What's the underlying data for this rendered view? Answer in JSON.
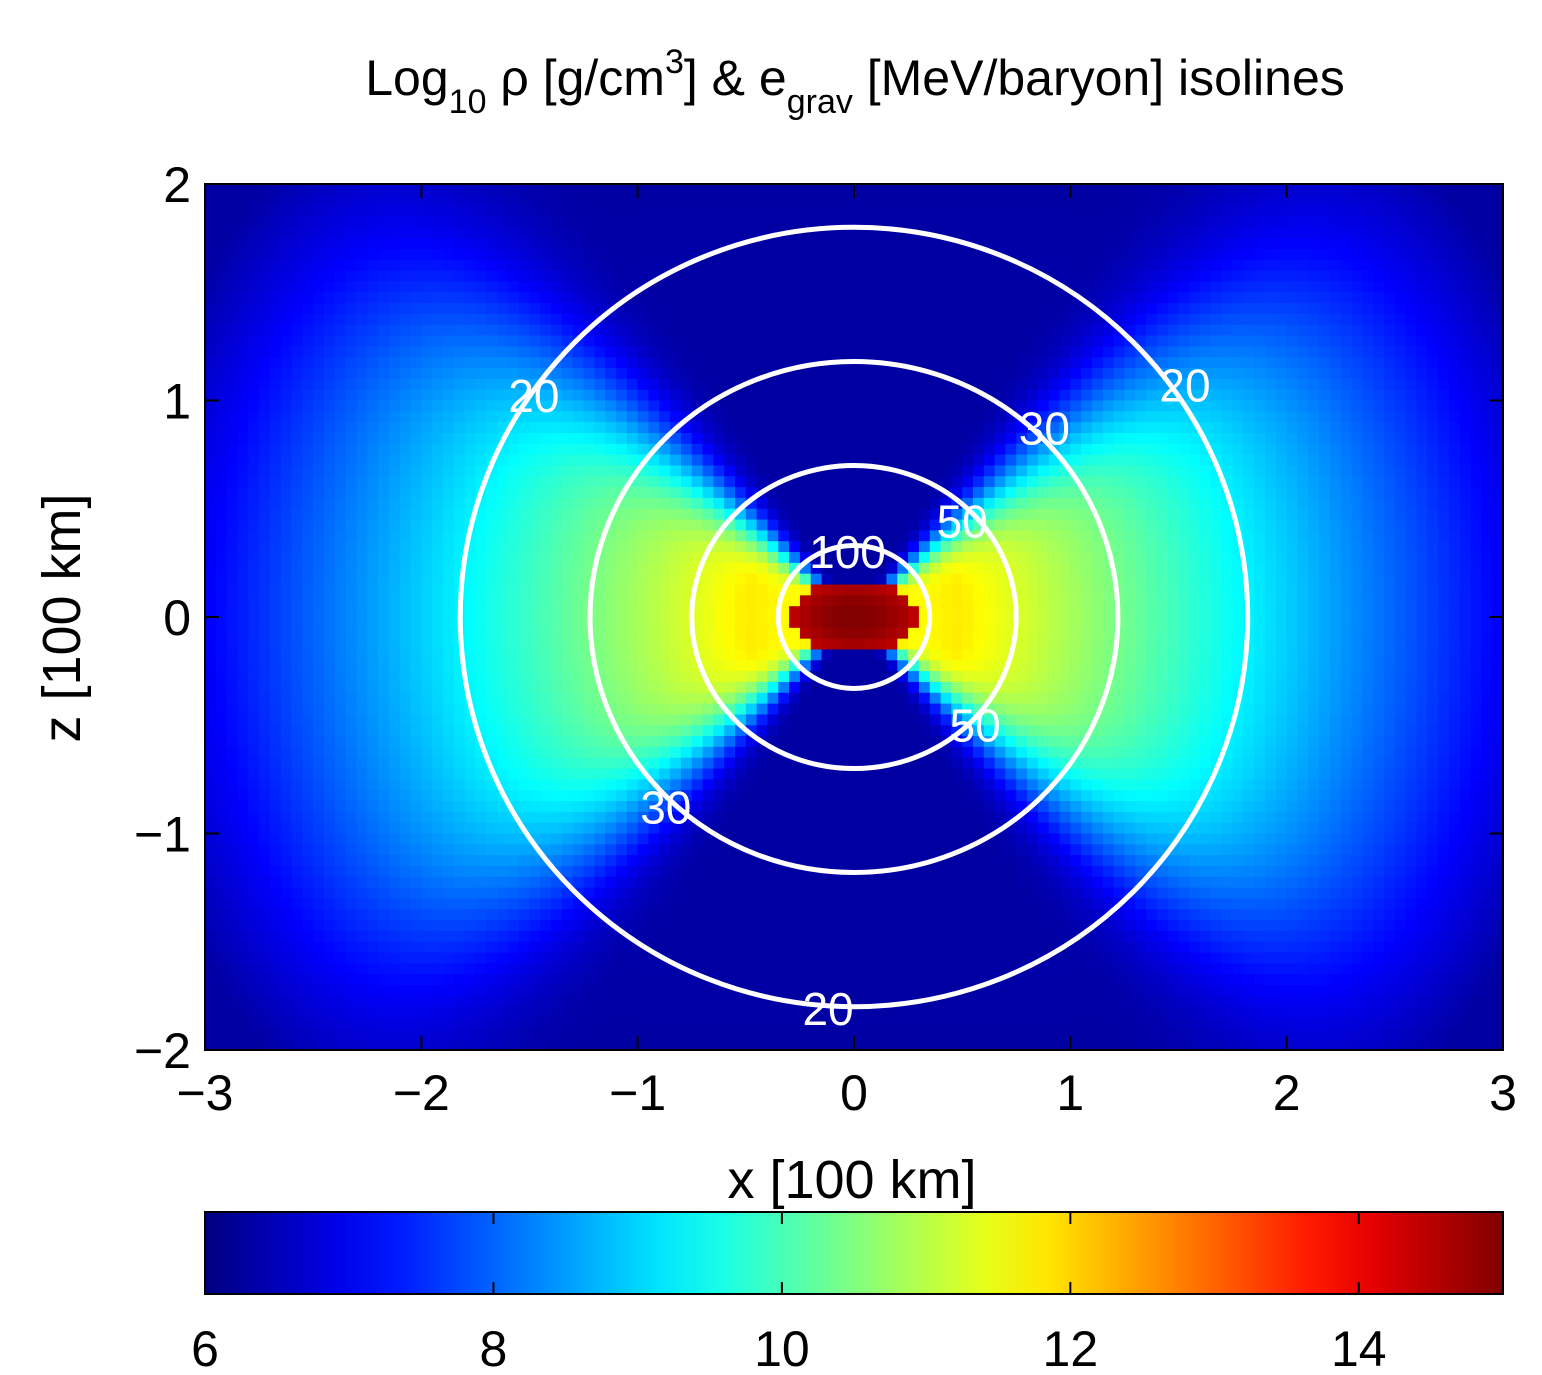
{
  "chart_data": {
    "type": "heatmap",
    "title": {
      "log": "Log",
      "log_sub": "10",
      "rho_unit": " ρ [g/cm",
      "rho_sup": "3",
      "amp_e": "] & e",
      "e_sub": "grav",
      "rest": " [MeV/baryon] isolines"
    },
    "xlabel": "x [100 km]",
    "ylabel": "z [100 km]",
    "xlim": [
      -3,
      3
    ],
    "ylim": [
      -2,
      2
    ],
    "x_ticks": [
      "−3",
      "−2",
      "−1",
      "0",
      "1",
      "2",
      "3"
    ],
    "x_tick_values": [
      -3,
      -2,
      -1,
      0,
      1,
      2,
      3
    ],
    "y_ticks": [
      "−2",
      "−1",
      "0",
      "1",
      "2"
    ],
    "y_tick_values": [
      -2,
      -1,
      0,
      1,
      2
    ],
    "colormap": "jet",
    "colorbar": {
      "min": 6,
      "max": 15,
      "ticks": [
        "6",
        "8",
        "10",
        "12",
        "14"
      ],
      "tick_values": [
        6,
        8,
        10,
        12,
        14
      ]
    },
    "field": {
      "quantity": "Log10 density",
      "core_value": 15,
      "core_center": [
        0,
        0
      ],
      "core_half_width": 0.3,
      "core_half_height": 0.17,
      "disk_max": 11.8,
      "background": 6.3
    },
    "isolines": [
      {
        "level": 100,
        "half_width_x": 0.35,
        "half_height_z": 0.33,
        "labels": [
          {
            "text": "100",
            "x": -0.03,
            "z": 0.3
          }
        ]
      },
      {
        "level": 50,
        "half_width_x": 0.75,
        "half_height_z": 0.7,
        "labels": [
          {
            "text": "50",
            "x": 0.5,
            "z": 0.44
          },
          {
            "text": "50",
            "x": 0.56,
            "z": -0.5
          }
        ]
      },
      {
        "level": 30,
        "half_width_x": 1.22,
        "half_height_z": 1.18,
        "labels": [
          {
            "text": "30",
            "x": 0.88,
            "z": 0.87
          },
          {
            "text": "30",
            "x": -0.87,
            "z": -0.88
          }
        ]
      },
      {
        "level": 20,
        "half_width_x": 1.82,
        "half_height_z": 1.8,
        "labels": [
          {
            "text": "20",
            "x": -1.48,
            "z": 1.02
          },
          {
            "text": "20",
            "x": 1.53,
            "z": 1.07
          },
          {
            "text": "20",
            "x": -0.12,
            "z": -1.81
          }
        ]
      }
    ]
  }
}
